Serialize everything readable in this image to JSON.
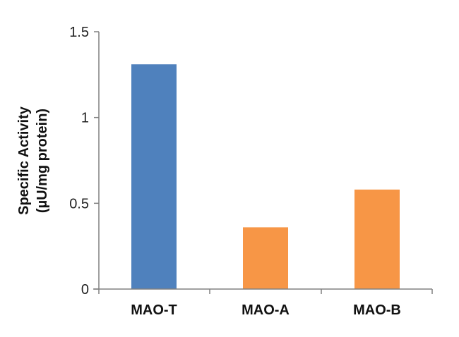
{
  "chart_data": {
    "type": "bar",
    "categories": [
      "MAO-T",
      "MAO-A",
      "MAO-B"
    ],
    "values": [
      1.31,
      0.36,
      0.58
    ],
    "ylim": [
      0,
      1.5
    ],
    "yticks": [
      0,
      0.5,
      1,
      1.5
    ],
    "ytick_labels": [
      "0",
      "0.5",
      "1",
      "1.5"
    ],
    "ylabel_line1": "Specific Activity",
    "ylabel_line2": "(µU/mg protein)",
    "xlabel": "",
    "title": "",
    "grid": false,
    "legend": "none",
    "bar_colors": [
      "#4f81bd",
      "#f79646",
      "#f79646"
    ],
    "axis_color": "#808080"
  }
}
